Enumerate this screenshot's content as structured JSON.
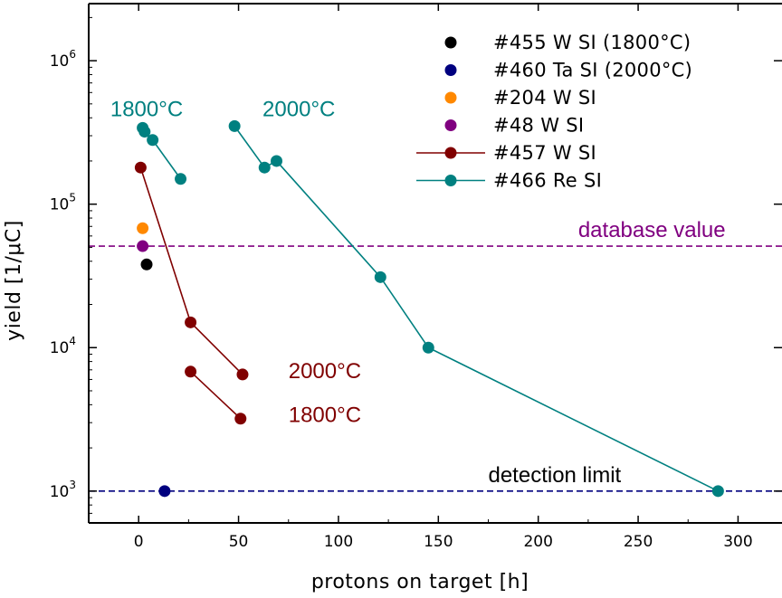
{
  "chart_data": {
    "type": "scatter",
    "xlabel": "protons on target [h]",
    "ylabel": "yield [1/μC]",
    "xlim": [
      -25,
      322
    ],
    "ylim": [
      600,
      2500000
    ],
    "yscale": "log",
    "xticks": [
      0,
      50,
      100,
      150,
      200,
      250,
      300
    ],
    "xtick_labels": [
      "0",
      "50",
      "100",
      "150",
      "200",
      "250",
      "300"
    ],
    "yticks": [
      1000,
      10000,
      100000,
      1000000
    ],
    "ytick_labels": [
      {
        "base": "10",
        "exp": "3"
      },
      {
        "base": "10",
        "exp": "4"
      },
      {
        "base": "10",
        "exp": "5"
      },
      {
        "base": "10",
        "exp": "6"
      }
    ],
    "legend_position": "top-right",
    "series": [
      {
        "name": "#455 W SI (1800°C)",
        "color": "#000000",
        "style": "markers",
        "points": [
          [
            4,
            38000
          ]
        ]
      },
      {
        "name": "#460 Ta SI (2000°C)",
        "color": "#00007f",
        "style": "markers",
        "points": [
          [
            13,
            1000
          ]
        ]
      },
      {
        "name": "#204 W SI",
        "color": "#ff8800",
        "style": "markers",
        "points": [
          [
            2,
            68000
          ]
        ]
      },
      {
        "name": "#48 W SI",
        "color": "#800080",
        "style": "markers",
        "points": [
          [
            2,
            51000
          ]
        ]
      },
      {
        "name": "#457 W SI",
        "color": "#800000",
        "style": "lines+markers",
        "segments": [
          [
            [
              1,
              180000
            ],
            [
              26,
              15000
            ],
            [
              52,
              6500
            ]
          ],
          [
            [
              26,
              6800
            ],
            [
              51,
              3200
            ]
          ]
        ]
      },
      {
        "name": "#466 Re SI",
        "color": "#008080",
        "style": "lines+markers",
        "segments": [
          [
            [
              2,
              340000
            ],
            [
              3,
              320000
            ],
            [
              7,
              280000
            ],
            [
              21,
              150000
            ]
          ],
          [
            [
              48,
              350000
            ],
            [
              63,
              180000
            ],
            [
              69,
              200000
            ],
            [
              121,
              31000
            ],
            [
              145,
              10000
            ],
            [
              290,
              1000
            ]
          ]
        ]
      }
    ],
    "reference_lines": [
      {
        "label": "database value",
        "y": 51000,
        "color": "#800080",
        "label_color": "#800080",
        "label_x": 220
      },
      {
        "label": "detection limit",
        "y": 1000,
        "color": "#00007f",
        "label_color": "#000000",
        "label_x": 175
      }
    ],
    "annotations": [
      {
        "text": "1800°C",
        "color": "#008080",
        "x": 4,
        "y": 460000
      },
      {
        "text": "2000°C",
        "color": "#008080",
        "x": 62,
        "y": 460000
      },
      {
        "text": "2000°C",
        "color": "#800000",
        "x": 75,
        "y": 6900
      },
      {
        "text": "1800°C",
        "color": "#800000",
        "x": 75,
        "y": 3400
      }
    ]
  }
}
